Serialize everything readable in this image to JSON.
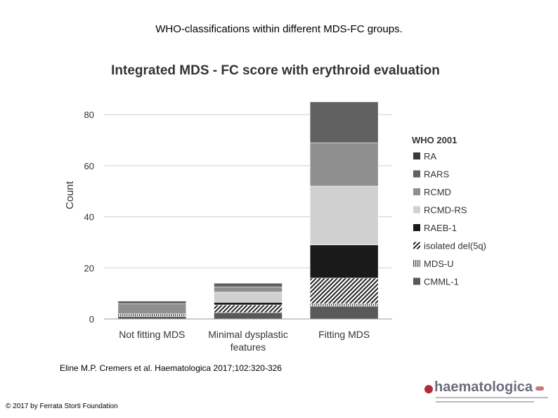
{
  "slide": {
    "title": "WHO-classifications within different MDS-FC groups.",
    "citation": "Eline M.P. Cremers et al. Haematologica 2017;102:320-326",
    "copyright": "© 2017 by Ferrata Storti Foundation",
    "logo_text": "haematologica"
  },
  "chart_data": {
    "type": "bar",
    "stacked": true,
    "title": "Integrated MDS - FC score with erythroid evaluation",
    "xlabel": "",
    "ylabel": "Count",
    "ylim": [
      0,
      85
    ],
    "yticks": [
      0,
      20,
      40,
      60,
      80
    ],
    "grid": true,
    "legend_title": "WHO 2001",
    "legend_position": "right",
    "categories": [
      "Not fitting MDS",
      "Minimal dysplastic features",
      "Fitting MDS"
    ],
    "category_lines": [
      [
        "Not fitting MDS"
      ],
      [
        "Minimal dysplastic",
        "features"
      ],
      [
        "Fitting MDS"
      ]
    ],
    "series": [
      {
        "name": "RA",
        "values": [
          0,
          0,
          0
        ],
        "color": "#3a3a3a",
        "pattern": "solid"
      },
      {
        "name": "RARS",
        "values": [
          1,
          1.5,
          16
        ],
        "color": "#616161",
        "pattern": "solid"
      },
      {
        "name": "RCMD",
        "values": [
          4,
          2,
          17
        ],
        "color": "#8f8f8f",
        "pattern": "solid"
      },
      {
        "name": "RCMD-RS",
        "values": [
          0,
          4,
          23
        ],
        "color": "#d0d0d0",
        "pattern": "solid"
      },
      {
        "name": "RAEB-1",
        "values": [
          0,
          1,
          13
        ],
        "color": "#1a1a1a",
        "pattern": "solid"
      },
      {
        "name": "isolated del(5q)",
        "values": [
          0,
          3,
          10
        ],
        "color": "#222222",
        "pattern": "diagonal"
      },
      {
        "name": "MDS-U",
        "values": [
          1,
          0,
          1
        ],
        "color": "#444444",
        "pattern": "vertical"
      },
      {
        "name": "CMML-1",
        "values": [
          1,
          2.5,
          5
        ],
        "color": "#595959",
        "pattern": "solid"
      }
    ]
  }
}
